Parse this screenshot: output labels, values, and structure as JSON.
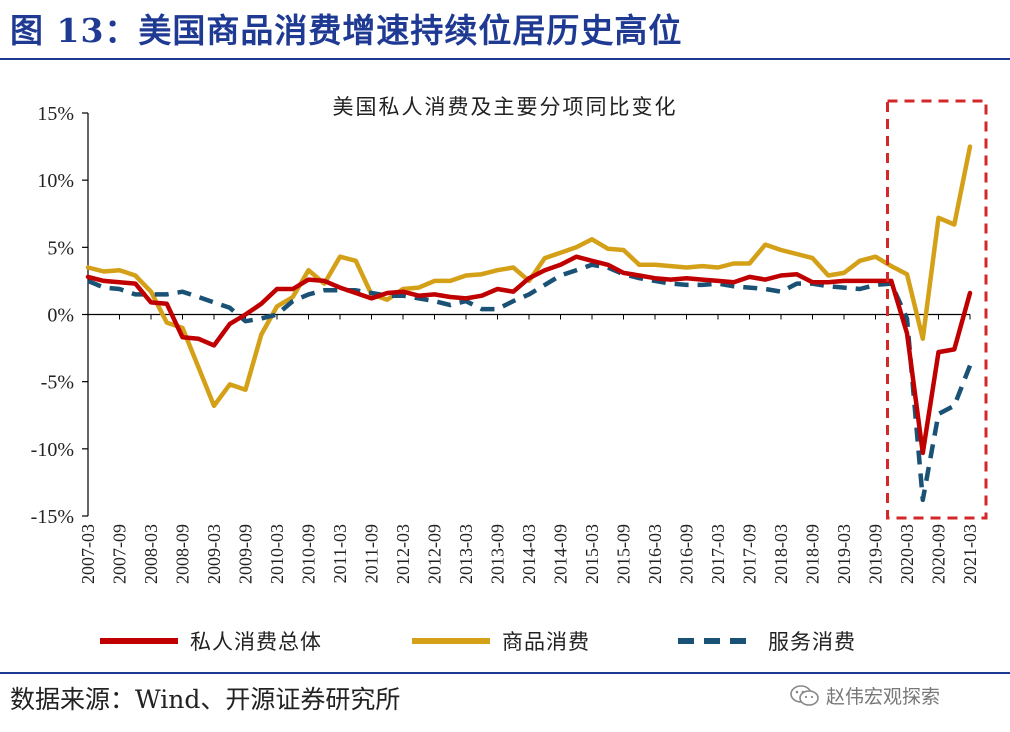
{
  "figure_title": "图 13：美国商品消费增速持续位居历史高位",
  "source_text": "数据来源：Wind、开源证券研究所",
  "watermark_text": "赵伟宏观探索",
  "watermark_icon": "wechat-icon",
  "chart_data": {
    "type": "line",
    "title": "美国私人消费及主要分项同比变化",
    "xlabel": "",
    "ylabel": "",
    "ylim": [
      -15,
      15
    ],
    "y_ticks": [
      "15%",
      "10%",
      "5%",
      "0%",
      "-5%",
      "-10%",
      "-15%"
    ],
    "y_tick_values": [
      15,
      10,
      5,
      0,
      -5,
      -10,
      -15
    ],
    "x_tick_labels": [
      "2007-03",
      "2007-09",
      "2008-03",
      "2008-09",
      "2009-03",
      "2009-09",
      "2010-03",
      "2010-09",
      "2011-03",
      "2011-09",
      "2012-03",
      "2012-09",
      "2013-03",
      "2013-09",
      "2014-03",
      "2014-09",
      "2015-03",
      "2015-09",
      "2016-03",
      "2016-09",
      "2017-03",
      "2017-09",
      "2018-03",
      "2018-09",
      "2019-03",
      "2019-09",
      "2020-03",
      "2020-09",
      "2021-03"
    ],
    "grid": false,
    "legend_position": "bottom",
    "highlight_box": {
      "x_start": "2019-09",
      "x_end": "2021-03",
      "color": "#d62728"
    },
    "series": [
      {
        "name": "私人消费总体",
        "color": "#c00000",
        "style": "solid",
        "values": [
          2.8,
          2.5,
          2.4,
          2.3,
          0.9,
          0.8,
          -1.7,
          -1.8,
          -2.3,
          -0.7,
          0.0,
          0.8,
          1.9,
          1.9,
          2.6,
          2.5,
          2.0,
          1.6,
          1.2,
          1.6,
          1.7,
          1.4,
          1.5,
          1.3,
          1.2,
          1.4,
          1.9,
          1.7,
          2.7,
          3.3,
          3.7,
          4.3,
          4.0,
          3.7,
          3.1,
          2.9,
          2.7,
          2.6,
          2.7,
          2.6,
          2.5,
          2.4,
          2.8,
          2.6,
          2.9,
          3.0,
          2.4,
          2.4,
          2.5,
          2.5,
          2.5,
          2.5,
          -1.4,
          -10.3,
          -2.8,
          -2.6,
          1.6
        ]
      },
      {
        "name": "商品消费",
        "color": "#d4a017",
        "style": "solid",
        "values": [
          3.5,
          3.2,
          3.3,
          2.9,
          1.7,
          -0.6,
          -1.0,
          -3.9,
          -6.8,
          -5.2,
          -5.6,
          -1.5,
          0.6,
          1.3,
          3.3,
          2.3,
          4.3,
          4.0,
          1.5,
          1.1,
          1.9,
          2.0,
          2.5,
          2.5,
          2.9,
          3.0,
          3.3,
          3.5,
          2.5,
          4.2,
          4.6,
          5.0,
          5.6,
          4.9,
          4.8,
          3.7,
          3.7,
          3.6,
          3.5,
          3.6,
          3.5,
          3.8,
          3.8,
          5.2,
          4.8,
          4.5,
          4.2,
          2.9,
          3.1,
          4.0,
          4.3,
          3.6,
          3.0,
          -1.8,
          7.2,
          6.7,
          12.5
        ]
      },
      {
        "name": "服务消费",
        "color": "#1a5276",
        "style": "dashed",
        "values": [
          2.5,
          2.0,
          1.9,
          1.5,
          1.5,
          1.5,
          1.7,
          1.3,
          0.9,
          0.5,
          -0.5,
          -0.3,
          0.0,
          1.0,
          1.5,
          1.8,
          1.8,
          1.8,
          1.6,
          1.4,
          1.4,
          1.2,
          1.0,
          0.7,
          1.0,
          0.4,
          0.4,
          1.0,
          1.5,
          2.2,
          2.9,
          3.3,
          3.7,
          3.5,
          3.0,
          2.7,
          2.5,
          2.3,
          2.2,
          2.2,
          2.3,
          2.1,
          2.0,
          1.9,
          1.7,
          2.3,
          2.3,
          2.1,
          2.0,
          1.9,
          2.2,
          2.3,
          -0.3,
          -13.8,
          -7.4,
          -6.8,
          -3.8
        ]
      }
    ]
  }
}
